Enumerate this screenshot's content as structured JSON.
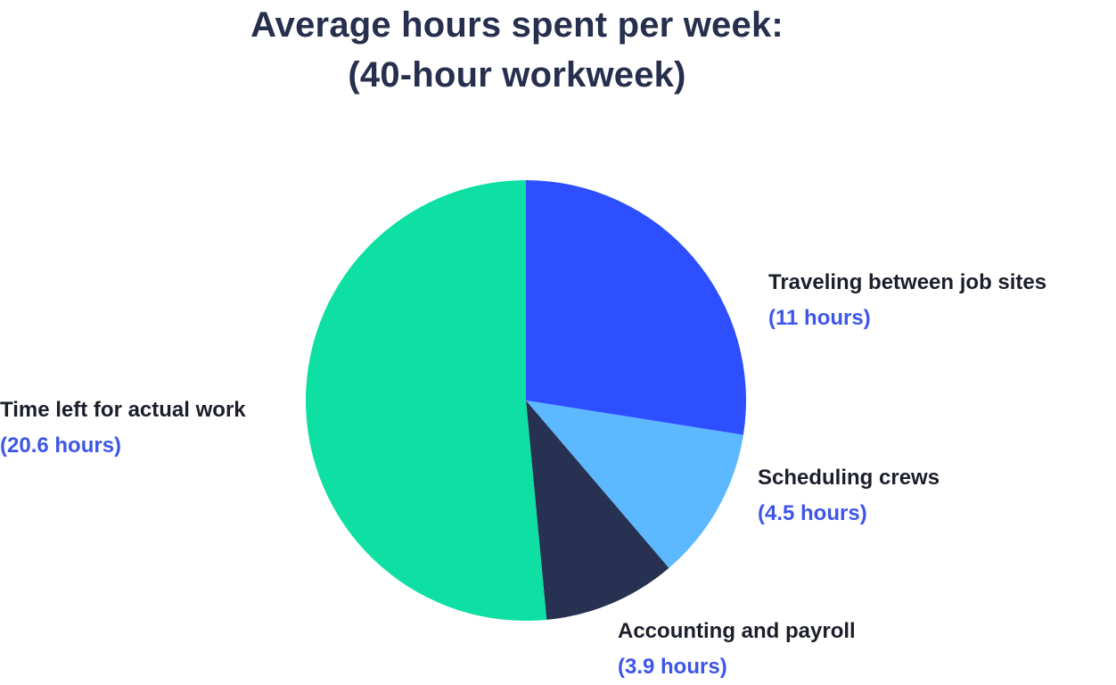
{
  "chart_data": {
    "type": "pie",
    "title_lines": [
      "Average hours spent per week:",
      "(40-hour workweek)"
    ],
    "start_angle_deg": 0,
    "direction": "clockwise",
    "slices": [
      {
        "label": "Traveling between job sites",
        "value": 11,
        "value_label": "(11 hours)",
        "color": "#2e4fff"
      },
      {
        "label": "Scheduling crews",
        "value": 4.5,
        "value_label": "(4.5 hours)",
        "color": "#5cb8ff"
      },
      {
        "label": "Accounting and payroll",
        "value": 3.9,
        "value_label": "(3.9 hours)",
        "color": "#273252"
      },
      {
        "label": "Time left for actual work",
        "value": 20.6,
        "value_label": "(20.6 hours)",
        "color": "#0ee0a4"
      }
    ],
    "legend": "none"
  },
  "colors": {
    "title": "#262f4d",
    "label_name": "#1c1f2b",
    "label_value": "#3d56e8",
    "background": "#ffffff"
  }
}
